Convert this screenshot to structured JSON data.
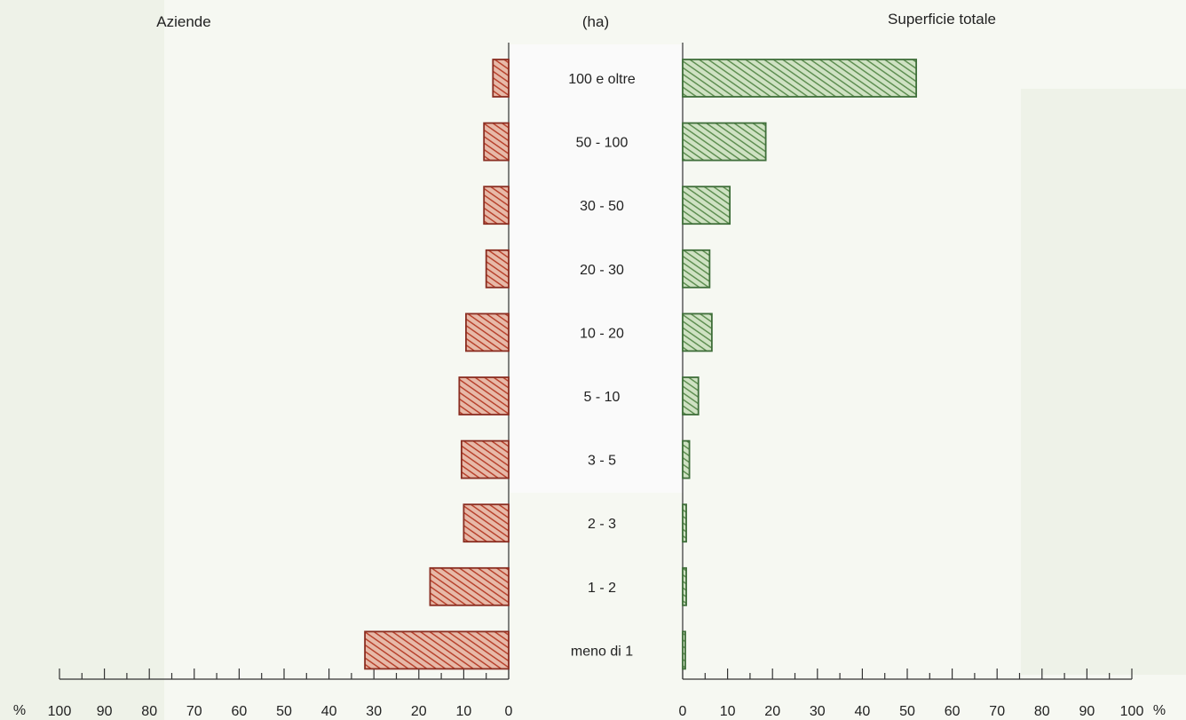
{
  "chart_data": {
    "type": "bar",
    "orientation": "horizontal-butterfly",
    "categories": [
      "100 e oltre",
      "50 - 100",
      "30 - 50",
      "20 - 30",
      "10 - 20",
      "5 - 10",
      "3 - 5",
      "2 - 3",
      "1 - 2",
      "meno di 1"
    ],
    "category_header": "(ha)",
    "series": [
      {
        "name": "Aziende",
        "side": "left",
        "color": "#c0553f",
        "values": [
          3.5,
          5.5,
          5.5,
          5,
          9.5,
          11,
          10.5,
          10,
          17.5,
          32
        ]
      },
      {
        "name": "Superficie totale",
        "side": "right",
        "color": "#7fae6a",
        "values": [
          52,
          18.5,
          10.5,
          6,
          6.5,
          3.5,
          1.5,
          0.8,
          0.8,
          0.3
        ]
      }
    ],
    "xlim": [
      0,
      100
    ],
    "left_ticks": [
      "100",
      "90",
      "80",
      "70",
      "60",
      "50",
      "40",
      "30",
      "20",
      "10",
      "0"
    ],
    "right_ticks": [
      "0",
      "10",
      "20",
      "30",
      "40",
      "50",
      "60",
      "70",
      "80",
      "90",
      "100"
    ],
    "unit_label": "%",
    "grid": false
  }
}
